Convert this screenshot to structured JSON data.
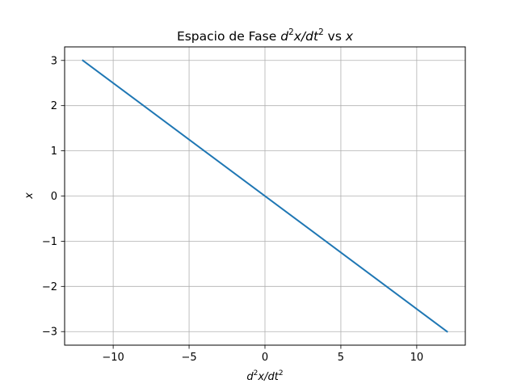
{
  "chart_data": {
    "type": "line",
    "title": {
      "prefix": "Espacio de Fase ",
      "d": "d",
      "exp2a": "2",
      "xdt": "x/dt",
      "exp2b": "2",
      "vs": " vs ",
      "x": "x"
    },
    "xlabel": {
      "d": "d",
      "exp2a": "2",
      "xdt": "x/dt",
      "exp2b": "2"
    },
    "ylabel": "x",
    "xlim": [
      -13.2,
      13.2
    ],
    "ylim": [
      -3.3,
      3.3
    ],
    "xticks": [
      -10,
      -5,
      0,
      5,
      10
    ],
    "xtick_labels": [
      "−10",
      "−5",
      "0",
      "5",
      "10"
    ],
    "yticks": [
      -3,
      -2,
      -1,
      0,
      1,
      2,
      3
    ],
    "ytick_labels": [
      "−3",
      "−2",
      "−1",
      "0",
      "1",
      "2",
      "3"
    ],
    "grid": true,
    "series": [
      {
        "color": "#1f77b4",
        "x": [
          -12,
          12
        ],
        "y": [
          3,
          -3
        ]
      }
    ]
  }
}
